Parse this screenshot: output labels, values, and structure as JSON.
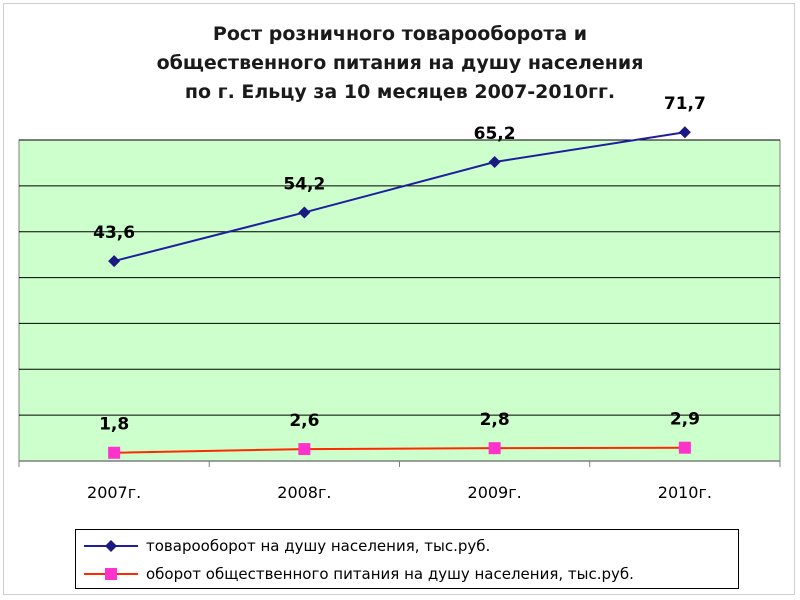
{
  "title_lines": [
    "Рост розничного товарооборота и",
    "общественного питания на душу населения",
    "по г. Ельцу за 10 месяцев 2007-2010гг."
  ],
  "chart_data": {
    "type": "line",
    "categories": [
      "2007г.",
      "2008г.",
      "2009г.",
      "2010г."
    ],
    "series": [
      {
        "name": "товарооборот на душу населения, тыс.руб.",
        "values": [
          43.6,
          54.2,
          65.2,
          71.7
        ],
        "labels": [
          "43,6",
          "54,2",
          "65,2",
          "71,7"
        ],
        "color": "#1f1f9e",
        "marker": "diamond",
        "marker_color": "#1a1a80"
      },
      {
        "name": "оборот общественного питания на душу населения, тыс.руб.",
        "values": [
          1.8,
          2.6,
          2.8,
          2.9
        ],
        "labels": [
          "1,8",
          "2,6",
          "2,8",
          "2,9"
        ],
        "color": "#ff2a00",
        "marker": "square",
        "marker_color": "#ff33cc"
      }
    ],
    "ylim": [
      0,
      70
    ],
    "grid": true,
    "plot_background": "#ccffcc",
    "legend_position": "bottom"
  }
}
